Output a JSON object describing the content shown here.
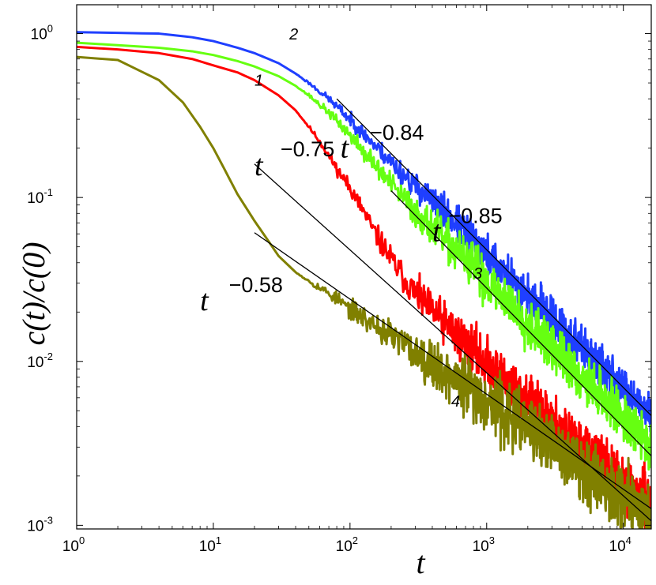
{
  "chart_data": {
    "type": "line",
    "scale": {
      "x": "log",
      "y": "log"
    },
    "xlabel": "t",
    "ylabel": "c(t)/c(0)",
    "xlim": [
      1,
      16000
    ],
    "ylim": [
      0.00095,
      1.5
    ],
    "x_ticks": [
      {
        "value": 1,
        "base": "10",
        "exp": "0"
      },
      {
        "value": 10,
        "base": "10",
        "exp": "1"
      },
      {
        "value": 100,
        "base": "10",
        "exp": "2"
      },
      {
        "value": 1000,
        "base": "10",
        "exp": "3"
      },
      {
        "value": 10000,
        "base": "10",
        "exp": "4"
      }
    ],
    "y_ticks": [
      {
        "value": 0.001,
        "base": "10",
        "exp": "-3"
      },
      {
        "value": 0.01,
        "base": "10",
        "exp": "-2"
      },
      {
        "value": 0.1,
        "base": "10",
        "exp": "-1"
      },
      {
        "value": 1,
        "base": "10",
        "exp": "0"
      }
    ],
    "series": [
      {
        "name": "1",
        "color": "#ff0000",
        "noise": 0.35,
        "seed": 11,
        "label_value": "1",
        "label_at": [
          20,
          0.48
        ],
        "points": [
          [
            1,
            0.83
          ],
          [
            2,
            0.8
          ],
          [
            4,
            0.76
          ],
          [
            7,
            0.7
          ],
          [
            10,
            0.64
          ],
          [
            15,
            0.58
          ],
          [
            20,
            0.52
          ],
          [
            30,
            0.42
          ],
          [
            40,
            0.34
          ],
          [
            50,
            0.27
          ],
          [
            60,
            0.22
          ],
          [
            70,
            0.18
          ],
          [
            80,
            0.15
          ],
          [
            100,
            0.115
          ],
          [
            120,
            0.088
          ],
          [
            150,
            0.062
          ],
          [
            200,
            0.042
          ],
          [
            250,
            0.032
          ],
          [
            300,
            0.026
          ],
          [
            400,
            0.02
          ],
          [
            500,
            0.017
          ],
          [
            700,
            0.013
          ],
          [
            1000,
            0.0097
          ],
          [
            2000,
            0.0058
          ],
          [
            4000,
            0.0035
          ],
          [
            8000,
            0.0021
          ],
          [
            16000,
            0.00135
          ]
        ]
      },
      {
        "name": "2",
        "color": "#1f3fff",
        "noise": 0.28,
        "seed": 23,
        "label_value": "2",
        "label_at": [
          36,
          0.92
        ],
        "points": [
          [
            1,
            1.02
          ],
          [
            2,
            1.01
          ],
          [
            4,
            1.0
          ],
          [
            7,
            0.95
          ],
          [
            10,
            0.9
          ],
          [
            15,
            0.82
          ],
          [
            20,
            0.76
          ],
          [
            30,
            0.66
          ],
          [
            40,
            0.57
          ],
          [
            50,
            0.5
          ],
          [
            70,
            0.4
          ],
          [
            100,
            0.3
          ],
          [
            150,
            0.21
          ],
          [
            200,
            0.165
          ],
          [
            300,
            0.118
          ],
          [
            400,
            0.095
          ],
          [
            600,
            0.069
          ],
          [
            1000,
            0.045
          ],
          [
            2000,
            0.025
          ],
          [
            4000,
            0.0145
          ],
          [
            8000,
            0.0083
          ],
          [
            16000,
            0.0047
          ]
        ]
      },
      {
        "name": "3",
        "color": "#66ff11",
        "noise": 0.32,
        "seed": 37,
        "label_value": "3",
        "label_at": [
          800,
          0.032
        ],
        "points": [
          [
            1,
            0.88
          ],
          [
            2,
            0.85
          ],
          [
            4,
            0.82
          ],
          [
            7,
            0.78
          ],
          [
            10,
            0.74
          ],
          [
            15,
            0.68
          ],
          [
            20,
            0.63
          ],
          [
            30,
            0.55
          ],
          [
            40,
            0.48
          ],
          [
            50,
            0.42
          ],
          [
            70,
            0.33
          ],
          [
            100,
            0.24
          ],
          [
            150,
            0.16
          ],
          [
            200,
            0.12
          ],
          [
            300,
            0.082
          ],
          [
            400,
            0.065
          ],
          [
            600,
            0.047
          ],
          [
            1000,
            0.031
          ],
          [
            2000,
            0.017
          ],
          [
            4000,
            0.0095
          ],
          [
            8000,
            0.0055
          ],
          [
            16000,
            0.003
          ]
        ]
      },
      {
        "name": "4",
        "color": "#808000",
        "noise": 0.42,
        "seed": 53,
        "label_value": "4",
        "label_at": [
          550,
          0.0053
        ],
        "points": [
          [
            1,
            0.72
          ],
          [
            2,
            0.69
          ],
          [
            4,
            0.52
          ],
          [
            6,
            0.38
          ],
          [
            8,
            0.27
          ],
          [
            10,
            0.2
          ],
          [
            12,
            0.15
          ],
          [
            15,
            0.105
          ],
          [
            20,
            0.072
          ],
          [
            25,
            0.055
          ],
          [
            30,
            0.044
          ],
          [
            40,
            0.035
          ],
          [
            50,
            0.031
          ],
          [
            70,
            0.026
          ],
          [
            100,
            0.021
          ],
          [
            200,
            0.0143
          ],
          [
            400,
            0.0097
          ],
          [
            700,
            0.007
          ],
          [
            1000,
            0.0058
          ],
          [
            2000,
            0.0039
          ],
          [
            4000,
            0.0026
          ],
          [
            8000,
            0.0017
          ],
          [
            16000,
            0.00115
          ]
        ]
      }
    ],
    "fits": [
      {
        "name": "fit-084",
        "base": "t",
        "exponent": "−0.84",
        "x0": 80,
        "y0": 0.4,
        "slope": -0.84,
        "x_end": 16000,
        "label_t_at": [
          85,
          0.175
        ],
        "label_exp_at": [
          140,
          0.225
        ]
      },
      {
        "name": "fit-085",
        "base": "t",
        "exponent": "−0.85",
        "x0": 200,
        "y0": 0.11,
        "slope": -0.85,
        "x_end": 16000,
        "label_t_at": [
          400,
          0.054
        ],
        "label_exp_at": [
          525,
          0.07
        ]
      },
      {
        "name": "fit-075",
        "base": "t",
        "exponent": "−0.75",
        "x0": 20,
        "y0": 0.16,
        "slope": -0.75,
        "x_end": 16000,
        "label_t_at": [
          20,
          0.137
        ],
        "label_exp_at": [
          31,
          0.178
        ]
      },
      {
        "name": "fit-058",
        "base": "t",
        "exponent": "−0.58",
        "x0": 20,
        "y0": 0.061,
        "slope": -0.58,
        "x_end": 16000,
        "label_t_at": [
          8,
          0.0205
        ],
        "label_exp_at": [
          13,
          0.0265
        ]
      }
    ]
  }
}
